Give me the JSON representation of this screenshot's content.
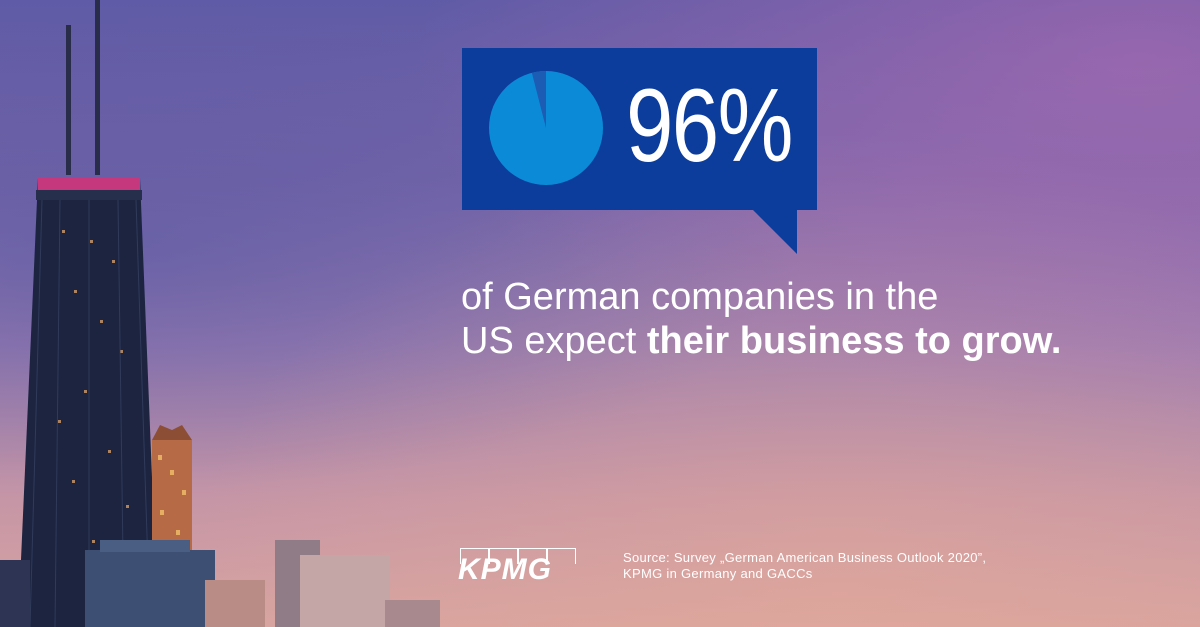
{
  "stat": {
    "percent_label": "96%",
    "pie_value": 96
  },
  "statement": {
    "line1": "of German companies in the",
    "line2_plain": "US expect ",
    "line2_bold": "their business to grow."
  },
  "logo": {
    "text": "KPMG"
  },
  "source": {
    "line1": "Source: Survey „German American Business Outlook 2020”,",
    "line2": "KPMG in Germany and GACCs"
  },
  "colors": {
    "callout": "#0c3c9c",
    "pie_fill": "#0b8bd7",
    "pie_remainder": "#1c5cb5",
    "text": "#ffffff"
  },
  "icons": {
    "pie": "pie-chart-icon"
  }
}
